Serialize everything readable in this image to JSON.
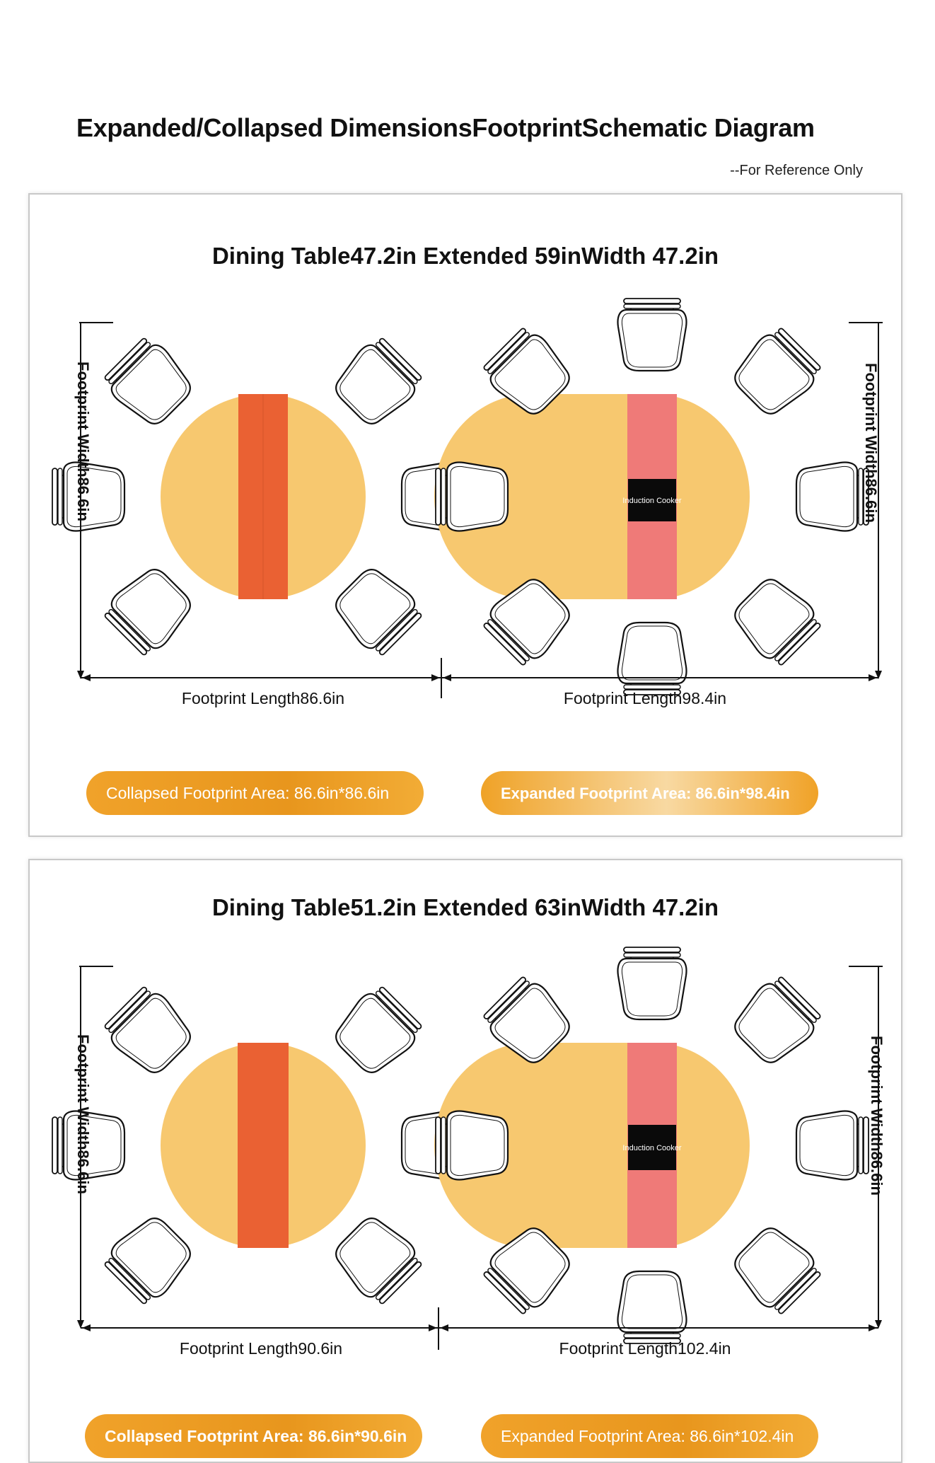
{
  "header": {
    "title": "Expanded/Collapsed DimensionsFootprintSchematic Diagram",
    "reference_note": "--For Reference Only"
  },
  "panels": [
    {
      "title": "Dining Table47.2in Extended 59inWidth 47.2in",
      "left_width_label": "Footprint Width86.6in",
      "right_width_label": "Footprint Width86.6in",
      "collapsed_length_label": "Footprint Length86.6in",
      "expanded_length_label": "Footprint Length98.4in",
      "collapsed_area": "Collapsed Footprint Area: 86.6in*86.6in",
      "expanded_area": "Expanded Footprint Area: 86.6in*98.4in",
      "induction_label": "Induction Cooker"
    },
    {
      "title": "Dining Table51.2in Extended 63inWidth 47.2in",
      "left_width_label": "Footprint Width86.6in",
      "right_width_label": "Footprint Width86.6in",
      "collapsed_length_label": "Footprint Length90.6in",
      "expanded_length_label": "Footprint Length102.4in",
      "collapsed_area": "Collapsed Footprint Area: 86.6in*90.6in",
      "expanded_area": "Expanded Footprint Area: 86.6in*102.4in",
      "induction_label": "Induction Cooker"
    }
  ],
  "colors": {
    "table_top": "#f7c86f",
    "center_leaf_collapsed": "#ea6133",
    "center_leaf_expanded": "#ef7a78",
    "induction_cooker": "#0a0a0a",
    "area_pill": "#ef9f25"
  }
}
